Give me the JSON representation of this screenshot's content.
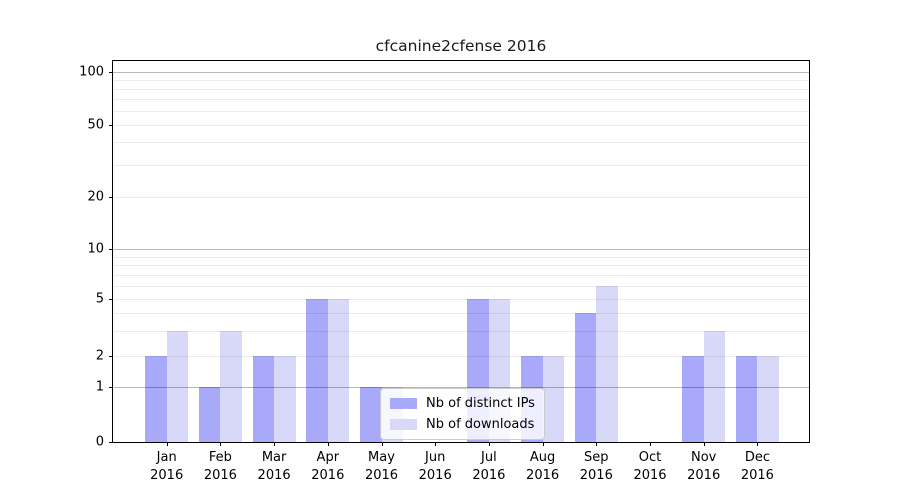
{
  "chart_data": {
    "type": "bar",
    "title": "cfcanine2cfense 2016",
    "categories": [
      "Jan 2016",
      "Feb 2016",
      "Mar 2016",
      "Apr 2016",
      "May 2016",
      "Jun 2016",
      "Jul 2016",
      "Aug 2016",
      "Sep 2016",
      "Oct 2016",
      "Nov 2016",
      "Dec 2016"
    ],
    "series": [
      {
        "name": "Nb of distinct IPs",
        "color": "#a9a9f9",
        "values": [
          2,
          1,
          2,
          5,
          1,
          0,
          5,
          2,
          4,
          0,
          2,
          2
        ]
      },
      {
        "name": "Nb of downloads",
        "color": "#d8d8f8",
        "values": [
          3,
          3,
          2,
          5,
          1,
          0,
          5,
          2,
          6,
          0,
          3,
          2
        ]
      }
    ],
    "xlabel": "",
    "ylabel": "",
    "yscale": "asinh-log",
    "yticks": [
      0,
      1,
      2,
      5,
      10,
      20,
      50,
      100
    ],
    "ylim": [
      0,
      120
    ],
    "grid": {
      "orientation": "horizontal",
      "major_values": [
        1,
        10,
        100
      ],
      "minor_values": [
        2,
        3,
        4,
        5,
        6,
        7,
        8,
        9,
        20,
        30,
        40,
        50,
        60,
        70,
        80,
        90
      ]
    },
    "legend_position": "lower-center-inside"
  }
}
